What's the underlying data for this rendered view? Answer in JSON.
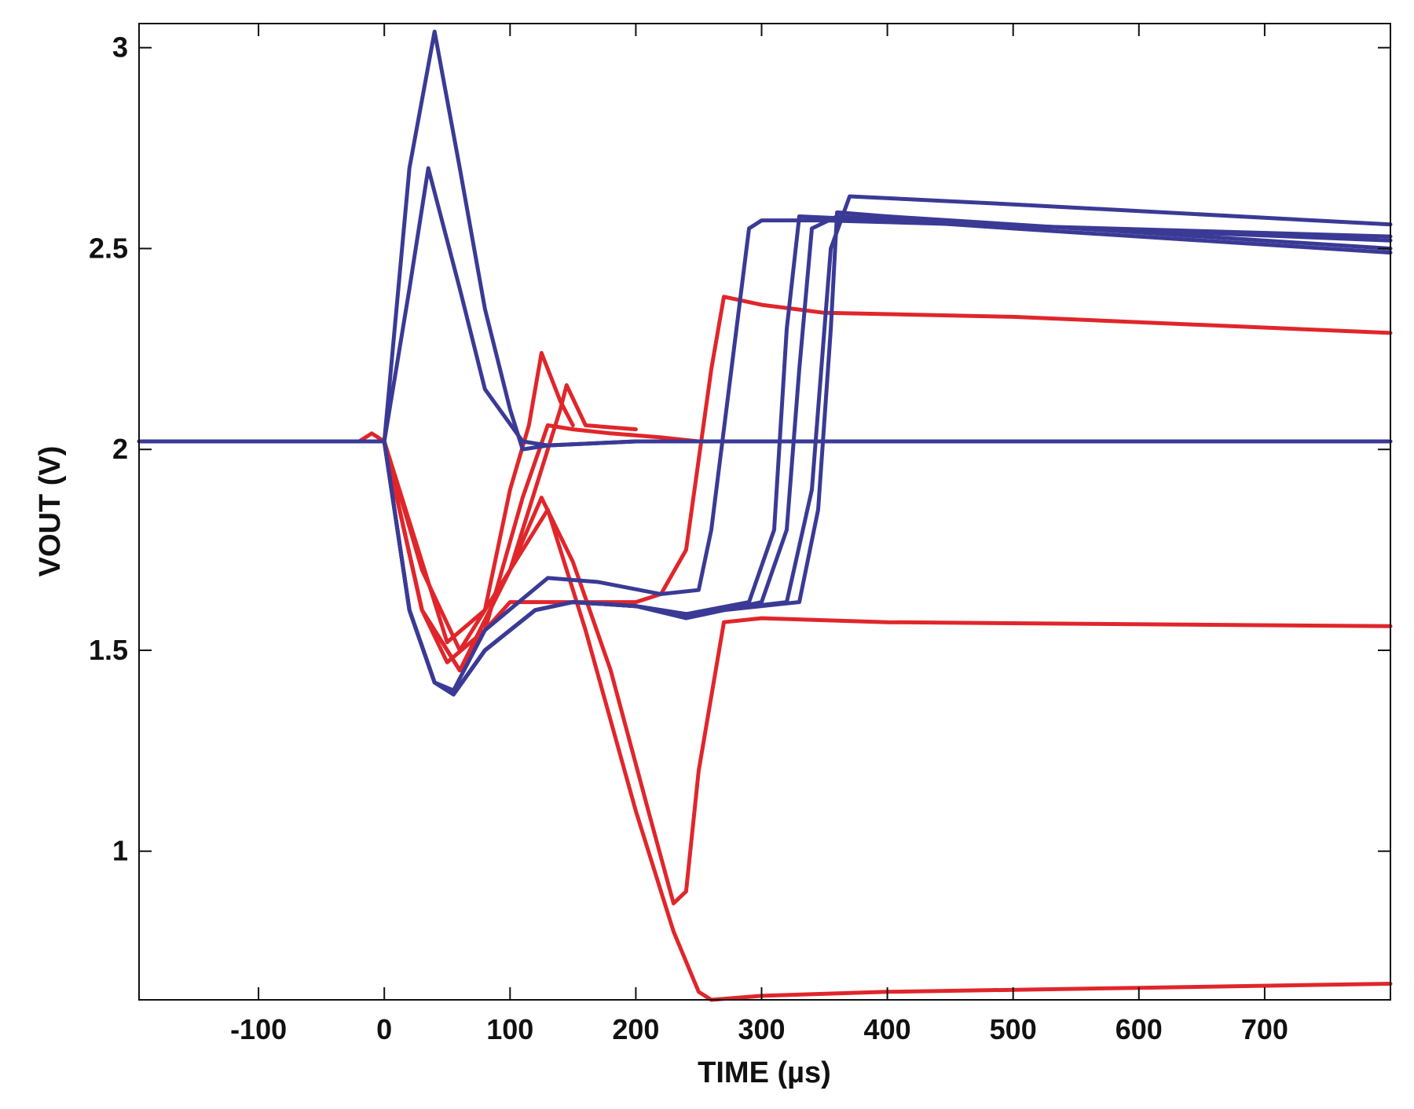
{
  "chart_data": {
    "type": "line",
    "title": "",
    "xlabel": "TIME (µs)",
    "ylabel": "VOUT (V)",
    "xlim": [
      -195,
      800
    ],
    "ylim": [
      0.63,
      3.06
    ],
    "xticks": [
      -100,
      0,
      100,
      200,
      300,
      400,
      500,
      600,
      700
    ],
    "yticks": [
      1,
      1.5,
      2,
      2.5,
      3
    ],
    "xtick_labels": [
      "-100",
      "0",
      "100",
      "200",
      "300",
      "400",
      "500",
      "600",
      "700"
    ],
    "ytick_labels": [
      "1",
      "1.5",
      "2",
      "2.5",
      "3"
    ],
    "grid": false,
    "legend": "none",
    "colors": {
      "red": "#e0262b",
      "blue": "#3a3a96",
      "axes": "#111111"
    },
    "series": [
      {
        "color": "#e0262b",
        "x": [
          -195,
          -20,
          -10,
          0,
          30,
          50,
          80,
          110,
          130,
          150,
          180,
          220,
          250,
          400,
          600,
          800
        ],
        "y": [
          2.02,
          2.02,
          2.04,
          2.02,
          1.6,
          1.47,
          1.55,
          1.88,
          2.06,
          2.05,
          2.04,
          2.03,
          2.02,
          2.02,
          2.02,
          2.02
        ]
      },
      {
        "color": "#e0262b",
        "x": [
          0,
          30,
          50,
          80,
          100,
          115,
          125,
          140,
          150
        ],
        "y": [
          2.02,
          1.72,
          1.52,
          1.6,
          1.9,
          2.06,
          2.24,
          2.12,
          2.06
        ]
      },
      {
        "color": "#e0262b",
        "x": [
          0,
          30,
          60,
          100,
          130,
          140,
          145,
          160,
          200
        ],
        "y": [
          2.02,
          1.7,
          1.5,
          1.7,
          2.0,
          2.1,
          2.16,
          2.06,
          2.05
        ]
      },
      {
        "color": "#e0262b",
        "x": [
          0,
          30,
          60,
          80,
          100,
          130,
          160,
          200,
          220,
          240,
          260,
          270,
          300,
          350,
          500,
          800
        ],
        "y": [
          2.02,
          1.6,
          1.45,
          1.55,
          1.62,
          1.62,
          1.62,
          1.62,
          1.64,
          1.75,
          2.2,
          2.38,
          2.36,
          2.34,
          2.33,
          2.29
        ]
      },
      {
        "color": "#e0262b",
        "x": [
          0,
          30,
          60,
          100,
          125,
          150,
          180,
          210,
          230,
          240,
          250,
          270,
          300,
          400,
          800
        ],
        "y": [
          2.02,
          1.6,
          1.45,
          1.7,
          1.88,
          1.72,
          1.45,
          1.1,
          0.87,
          0.9,
          1.2,
          1.57,
          1.58,
          1.57,
          1.56
        ]
      },
      {
        "color": "#e0262b",
        "x": [
          0,
          30,
          60,
          100,
          130,
          160,
          200,
          230,
          250,
          260,
          300,
          400,
          600,
          800
        ],
        "y": [
          2.02,
          1.6,
          1.45,
          1.7,
          1.85,
          1.55,
          1.1,
          0.8,
          0.65,
          0.63,
          0.64,
          0.65,
          0.66,
          0.67
        ]
      },
      {
        "color": "#3a3a96",
        "x": [
          -195,
          -15,
          0,
          20,
          40,
          60,
          80,
          100,
          110,
          130,
          200,
          400,
          600,
          800
        ],
        "y": [
          2.02,
          2.02,
          2.02,
          2.7,
          3.04,
          2.7,
          2.35,
          2.1,
          2.0,
          2.01,
          2.02,
          2.02,
          2.02,
          2.02
        ]
      },
      {
        "color": "#3a3a96",
        "x": [
          0,
          20,
          35,
          60,
          80,
          110,
          130,
          200
        ],
        "y": [
          2.02,
          2.4,
          2.7,
          2.4,
          2.15,
          2.02,
          2.01,
          2.02
        ]
      },
      {
        "color": "#3a3a96",
        "x": [
          0,
          20,
          40,
          55,
          80,
          120,
          150,
          200,
          240,
          300,
          320,
          330,
          340,
          360,
          500,
          800
        ],
        "y": [
          2.02,
          1.6,
          1.42,
          1.39,
          1.5,
          1.6,
          1.62,
          1.61,
          1.58,
          1.62,
          1.8,
          2.2,
          2.55,
          2.58,
          2.55,
          2.49
        ]
      },
      {
        "color": "#3a3a96",
        "x": [
          0,
          20,
          40,
          55,
          80,
          120,
          150,
          200,
          240,
          290,
          310,
          320,
          330,
          400,
          800
        ],
        "y": [
          2.02,
          1.6,
          1.42,
          1.39,
          1.5,
          1.6,
          1.62,
          1.61,
          1.59,
          1.62,
          1.8,
          2.3,
          2.58,
          2.57,
          2.52
        ]
      },
      {
        "color": "#3a3a96",
        "x": [
          0,
          20,
          40,
          55,
          80,
          120,
          150,
          200,
          240,
          320,
          340,
          350,
          355,
          370,
          500,
          800
        ],
        "y": [
          2.02,
          1.6,
          1.42,
          1.39,
          1.5,
          1.6,
          1.62,
          1.61,
          1.59,
          1.62,
          1.9,
          2.3,
          2.5,
          2.63,
          2.61,
          2.56
        ]
      },
      {
        "color": "#3a3a96",
        "x": [
          0,
          20,
          40,
          55,
          80,
          130,
          170,
          220,
          250,
          260,
          280,
          290,
          300,
          350,
          800
        ],
        "y": [
          2.02,
          1.6,
          1.42,
          1.4,
          1.55,
          1.68,
          1.67,
          1.64,
          1.65,
          1.8,
          2.3,
          2.55,
          2.57,
          2.57,
          2.53
        ]
      },
      {
        "color": "#3a3a96",
        "x": [
          0,
          20,
          40,
          55,
          80,
          120,
          150,
          200,
          240,
          330,
          345,
          355,
          360,
          400,
          800
        ],
        "y": [
          2.02,
          1.6,
          1.42,
          1.39,
          1.5,
          1.6,
          1.62,
          1.61,
          1.59,
          1.62,
          1.85,
          2.3,
          2.59,
          2.58,
          2.5
        ]
      }
    ]
  }
}
